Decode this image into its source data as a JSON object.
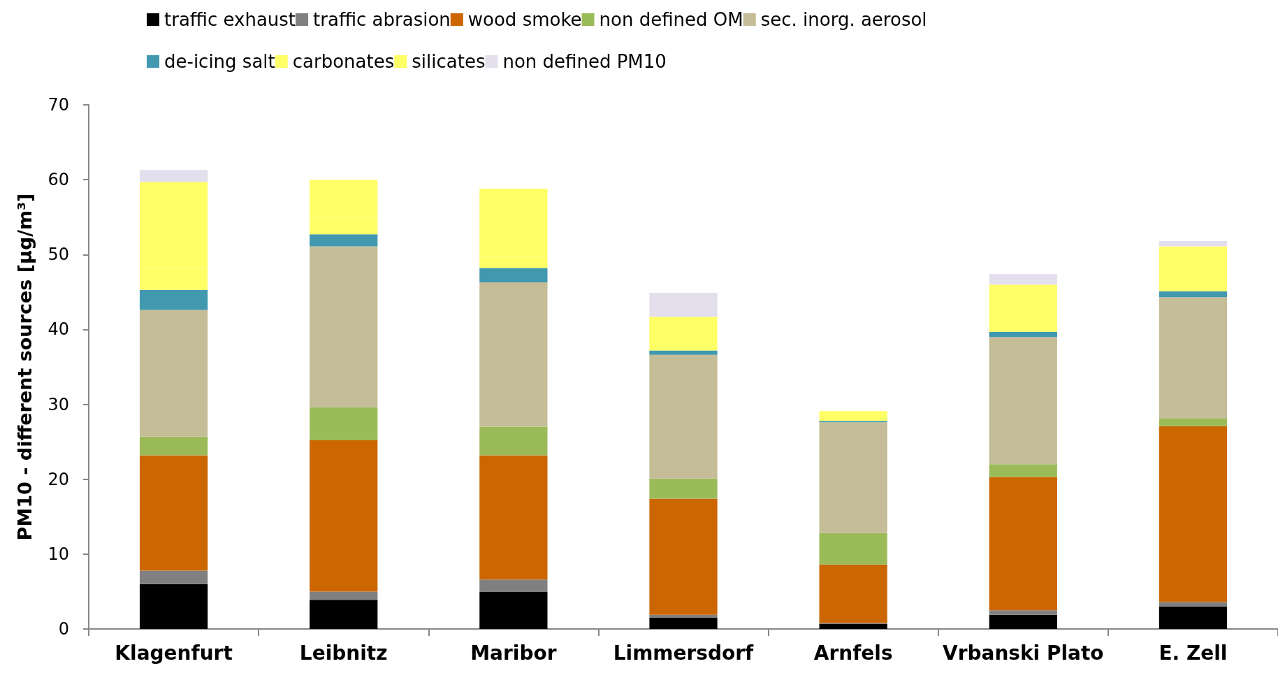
{
  "chart_data": {
    "type": "bar",
    "stacked": true,
    "ylabel": "PM10 - different sources [µg/m³]",
    "categories": [
      "Klagenfurt",
      "Leibnitz",
      "Maribor",
      "Limmersdorf",
      "Arnfels",
      "Vrbanski Plato",
      "E. Zell"
    ],
    "series": [
      {
        "name": "traffic exhaust",
        "color": "#000000",
        "values": [
          6.0,
          3.9,
          5.0,
          1.5,
          0.7,
          1.9,
          3.0
        ]
      },
      {
        "name": "traffic abrasion",
        "color": "#808080",
        "values": [
          1.8,
          1.1,
          1.6,
          0.4,
          0.1,
          0.6,
          0.6
        ]
      },
      {
        "name": "wood smoke",
        "color": "#cc6600",
        "values": [
          15.4,
          20.2,
          16.6,
          15.5,
          7.8,
          17.8,
          23.5
        ]
      },
      {
        "name": "non defined OM",
        "color": "#9bbb59",
        "values": [
          2.5,
          4.4,
          3.8,
          2.7,
          4.2,
          1.7,
          1.0
        ]
      },
      {
        "name": "sec. inorg. aerosol",
        "color": "#c4bd97",
        "values": [
          16.9,
          21.5,
          19.3,
          16.5,
          14.8,
          17.0,
          16.2
        ]
      },
      {
        "name": "de-icing salt",
        "color": "#4198af",
        "values": [
          2.7,
          1.6,
          1.9,
          0.6,
          0.2,
          0.7,
          0.8
        ]
      },
      {
        "name": "carbonates",
        "color": "#ffff66",
        "values": [
          2.8,
          2.2,
          1.6,
          0,
          0,
          0,
          0
        ]
      },
      {
        "name": "silicates",
        "color": "#ffff66",
        "values": [
          11.6,
          5.1,
          9.0,
          4.5,
          1.3,
          6.3,
          6.0
        ]
      },
      {
        "name": "non defined PM10",
        "color": "#e4dfec",
        "values": [
          1.6,
          0,
          0,
          3.2,
          0,
          1.4,
          0.7
        ]
      }
    ],
    "ylim": [
      0,
      70
    ],
    "yticks": [
      0,
      10,
      20,
      30,
      40,
      50,
      60,
      70
    ],
    "grid": false,
    "legend": "top"
  }
}
